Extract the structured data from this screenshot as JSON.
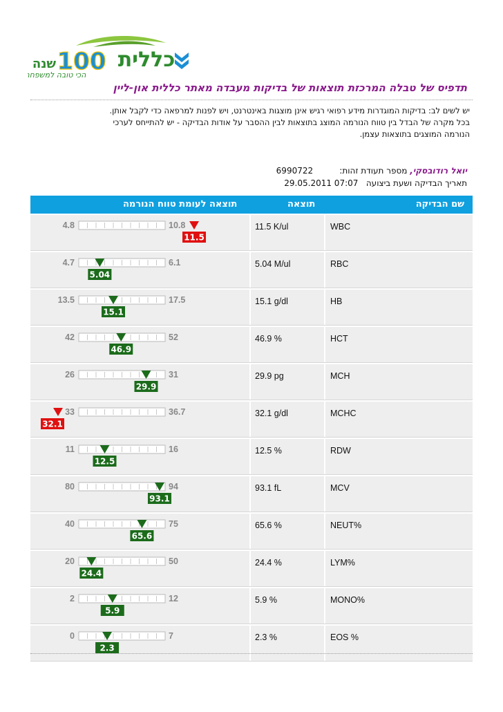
{
  "brand": {
    "logo_text": "כללית",
    "anniversary_number": "100",
    "anniversary_word": "שנה",
    "tagline": "הכי טובה למשפחה",
    "colors": {
      "green": "#2e8b2e",
      "blue": "#1a8fd6",
      "yellow": "#f2c200"
    }
  },
  "page": {
    "title": "תדפיס של טבלה המרכזת תוצאות של בדיקות מעבדה מאתר כללית און-ליין",
    "notice_lines": [
      "יש לשים לב: בדיקות המוגדרות מידע רפואי רגיש אינן מוצגות באינטרנט, ויש לפנות למרפאה כדי לקבל אותן.",
      "בכל מקרה של הבדל בין טווח הנורמה המוצג בתוצאות לבין ההסבר על אודות הבדיקה - יש להתייחס לערכי",
      "הנורמה המוצגים בתוצאות עצמן."
    ]
  },
  "patient": {
    "name": "יואל רודובסקי,",
    "id_label": "מספר תעודת זהות:",
    "id_value": "6990722",
    "date_label": "תאריך הבדיקה ושעת ביצועה",
    "date_value": "29.05.2011  07:07"
  },
  "table": {
    "headers": {
      "test_name": "שם הבדיקה",
      "result": "תוצאה",
      "range": "תוצאה לעומת טווח הנורמה"
    },
    "colors": {
      "header_bg": "#0fa0e0",
      "normal": "#1b6b1b",
      "abnormal": "#e01010"
    },
    "rows": [
      {
        "name": "WBC",
        "result": "11.5 K/ul",
        "min": "4.8",
        "max": "10.8",
        "value": "11.5",
        "lo": 4.8,
        "hi": 10.8,
        "v": 11.5,
        "abnormal": true
      },
      {
        "name": "RBC",
        "result": "5.04 M/ul",
        "min": "4.7",
        "max": "6.1",
        "value": "5.04",
        "lo": 4.7,
        "hi": 6.1,
        "v": 5.04,
        "abnormal": false
      },
      {
        "name": "HB",
        "result": "15.1 g/dl",
        "min": "13.5",
        "max": "17.5",
        "value": "15.1",
        "lo": 13.5,
        "hi": 17.5,
        "v": 15.1,
        "abnormal": false
      },
      {
        "name": "HCT",
        "result": "46.9 %",
        "min": "42",
        "max": "52",
        "value": "46.9",
        "lo": 42,
        "hi": 52,
        "v": 46.9,
        "abnormal": false
      },
      {
        "name": "MCH",
        "result": "29.9 pg",
        "min": "26",
        "max": "31",
        "value": "29.9",
        "lo": 26,
        "hi": 31,
        "v": 29.9,
        "abnormal": false
      },
      {
        "name": "MCHC",
        "result": "32.1 g/dl",
        "min": "33",
        "max": "36.7",
        "value": "32.1",
        "lo": 33,
        "hi": 36.7,
        "v": 32.1,
        "abnormal": true
      },
      {
        "name": "RDW",
        "result": "12.5 %",
        "min": "11",
        "max": "16",
        "value": "12.5",
        "lo": 11,
        "hi": 16,
        "v": 12.5,
        "abnormal": false
      },
      {
        "name": "MCV",
        "result": "93.1 fL",
        "min": "80",
        "max": "94",
        "value": "93.1",
        "lo": 80,
        "hi": 94,
        "v": 93.1,
        "abnormal": false
      },
      {
        "name": "NEUT%",
        "result": "65.6 %",
        "min": "40",
        "max": "75",
        "value": "65.6",
        "lo": 40,
        "hi": 75,
        "v": 65.6,
        "abnormal": false
      },
      {
        "name": "LYM%",
        "result": "24.4 %",
        "min": "20",
        "max": "50",
        "value": "24.4",
        "lo": 20,
        "hi": 50,
        "v": 24.4,
        "abnormal": false
      },
      {
        "name": "MONO%",
        "result": "5.9 %",
        "min": "2",
        "max": "12",
        "value": "5.9",
        "lo": 2,
        "hi": 12,
        "v": 5.9,
        "abnormal": false
      },
      {
        "name": "EOS %",
        "result": "2.3 %",
        "min": "0",
        "max": "7",
        "value": "2.3",
        "lo": 0,
        "hi": 7,
        "v": 2.3,
        "abnormal": false
      }
    ]
  }
}
